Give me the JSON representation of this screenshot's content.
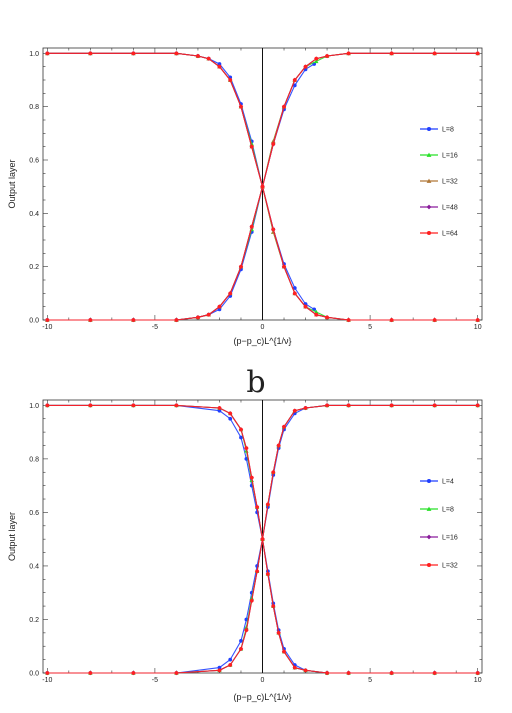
{
  "chart_data": [
    {
      "type": "line",
      "panel_label": "",
      "xlabel": "(p−p_c)L^{1/ν}",
      "ylabel": "Output layer",
      "xlim": [
        -10.2,
        10.2
      ],
      "ylim": [
        0,
        1.02
      ],
      "xticks": [
        -10,
        -5,
        0,
        5,
        10
      ],
      "yticks": [
        0.0,
        0.2,
        0.4,
        0.6,
        0.8,
        1.0
      ],
      "xtick_labels": [
        "-10",
        "-5",
        "0",
        "5",
        "10"
      ],
      "ytick_labels": [
        "0.0",
        "0.2",
        "0.4",
        "0.6",
        "0.8",
        "1.0"
      ],
      "vertical_line_x": 0,
      "legend_position": "right",
      "x": [
        -10,
        -8,
        -6,
        -4,
        -3,
        -2.5,
        -2,
        -1.5,
        -1,
        -0.5,
        0,
        0.5,
        1,
        1.5,
        2,
        2.5,
        3,
        4,
        6,
        8,
        10
      ],
      "series": [
        {
          "name": "L=8",
          "color": "#1f3fff",
          "marker": "circle",
          "x": [
            -10,
            -8,
            -6,
            -4,
            -3,
            -2.5,
            -2,
            -1.5,
            -1,
            -0.5,
            0,
            0.5,
            1,
            1.5,
            2,
            2.4
          ],
          "ascending": [
            0.0,
            0.0,
            0.0,
            0.0,
            0.01,
            0.02,
            0.04,
            0.09,
            0.19,
            0.33,
            0.5,
            0.66,
            0.79,
            0.88,
            0.94,
            0.96
          ],
          "descending": [
            1.0,
            1.0,
            1.0,
            1.0,
            0.99,
            0.98,
            0.96,
            0.91,
            0.81,
            0.67,
            0.5,
            0.34,
            0.21,
            0.12,
            0.06,
            0.04
          ]
        },
        {
          "name": "L=16",
          "color": "#28e028",
          "marker": "triangle",
          "ascending": [
            0.0,
            0.0,
            0.0,
            0.0,
            0.01,
            0.02,
            0.05,
            0.1,
            0.2,
            0.34,
            0.5,
            0.67,
            0.8,
            0.9,
            0.95,
            0.97,
            0.99,
            1.0,
            1.0,
            1.0,
            1.0
          ],
          "descending": [
            1.0,
            1.0,
            1.0,
            1.0,
            0.99,
            0.98,
            0.95,
            0.9,
            0.8,
            0.66,
            0.5,
            0.33,
            0.2,
            0.1,
            0.05,
            0.03,
            0.01,
            0.0,
            0.0,
            0.0,
            0.0
          ]
        },
        {
          "name": "L=32",
          "color": "#b07838",
          "marker": "triangle",
          "ascending": [
            0.0,
            0.0,
            0.0,
            0.0,
            0.01,
            0.02,
            0.05,
            0.1,
            0.2,
            0.35,
            0.5,
            0.67,
            0.8,
            0.9,
            0.95,
            0.98,
            0.99,
            1.0,
            1.0,
            1.0,
            1.0
          ],
          "descending": [
            1.0,
            1.0,
            1.0,
            1.0,
            0.99,
            0.98,
            0.95,
            0.9,
            0.8,
            0.65,
            0.5,
            0.33,
            0.2,
            0.1,
            0.05,
            0.02,
            0.01,
            0.0,
            0.0,
            0.0,
            0.0
          ]
        },
        {
          "name": "L=48",
          "color": "#8a1c9c",
          "marker": "diamond",
          "ascending": [
            0.0,
            0.0,
            0.0,
            0.0,
            0.01,
            0.02,
            0.05,
            0.1,
            0.2,
            0.35,
            0.5,
            0.66,
            0.8,
            0.9,
            0.95,
            0.98,
            0.99,
            1.0,
            1.0,
            1.0,
            1.0
          ],
          "descending": [
            1.0,
            1.0,
            1.0,
            1.0,
            0.99,
            0.98,
            0.95,
            0.9,
            0.8,
            0.65,
            0.5,
            0.34,
            0.2,
            0.1,
            0.05,
            0.02,
            0.01,
            0.0,
            0.0,
            0.0,
            0.0
          ]
        },
        {
          "name": "L=64",
          "color": "#ff2020",
          "marker": "circle",
          "ascending": [
            0.0,
            0.0,
            0.0,
            0.0,
            0.01,
            0.02,
            0.05,
            0.1,
            0.2,
            0.35,
            0.5,
            0.66,
            0.8,
            0.9,
            0.95,
            0.98,
            0.99,
            1.0,
            1.0,
            1.0,
            1.0
          ],
          "descending": [
            1.0,
            1.0,
            1.0,
            1.0,
            0.99,
            0.98,
            0.95,
            0.9,
            0.8,
            0.65,
            0.5,
            0.34,
            0.2,
            0.1,
            0.05,
            0.02,
            0.01,
            0.0,
            0.0,
            0.0,
            0.0
          ]
        }
      ]
    },
    {
      "type": "line",
      "panel_label": "b",
      "xlabel": "(p−p_c)L^{1/ν}",
      "ylabel": "Output layer",
      "xlim": [
        -10.2,
        10.2
      ],
      "ylim": [
        0,
        1.02
      ],
      "xticks": [
        -10,
        -5,
        0,
        5,
        10
      ],
      "yticks": [
        0.0,
        0.2,
        0.4,
        0.6,
        0.8,
        1.0
      ],
      "xtick_labels": [
        "-10",
        "-5",
        "0",
        "5",
        "10"
      ],
      "ytick_labels": [
        "0.0",
        "0.2",
        "0.4",
        "0.6",
        "0.8",
        "1.0"
      ],
      "vertical_line_x": 0,
      "legend_position": "right",
      "x": [
        -10,
        -8,
        -6,
        -4,
        -2,
        -1.5,
        -1,
        -0.75,
        -0.5,
        -0.25,
        0,
        0.25,
        0.5,
        0.75,
        1,
        1.5,
        2,
        3,
        4,
        6,
        8,
        10
      ],
      "series": [
        {
          "name": "L=4",
          "color": "#1f3fff",
          "marker": "circle",
          "ascending": [
            0.0,
            0.0,
            0.0,
            0.0,
            0.02,
            0.05,
            0.12,
            0.2,
            0.3,
            0.4,
            0.5,
            0.62,
            0.74,
            0.84,
            0.91,
            0.97,
            0.99,
            1.0,
            1.0,
            1.0,
            1.0,
            1.0
          ],
          "descending": [
            1.0,
            1.0,
            1.0,
            1.0,
            0.98,
            0.95,
            0.88,
            0.8,
            0.7,
            0.6,
            0.5,
            0.38,
            0.26,
            0.16,
            0.09,
            0.03,
            0.01,
            0.0,
            0.0,
            0.0,
            0.0,
            0.0
          ]
        },
        {
          "name": "L=8",
          "color": "#28e028",
          "marker": "triangle",
          "ascending": [
            0.0,
            0.0,
            0.0,
            0.0,
            0.01,
            0.03,
            0.09,
            0.17,
            0.28,
            0.38,
            0.5,
            0.63,
            0.75,
            0.85,
            0.92,
            0.98,
            0.99,
            1.0,
            1.0,
            1.0,
            1.0,
            1.0
          ],
          "descending": [
            1.0,
            1.0,
            1.0,
            1.0,
            0.99,
            0.97,
            0.91,
            0.83,
            0.72,
            0.62,
            0.5,
            0.37,
            0.25,
            0.15,
            0.08,
            0.02,
            0.01,
            0.0,
            0.0,
            0.0,
            0.0,
            0.0
          ]
        },
        {
          "name": "L=16",
          "color": "#8a1c9c",
          "marker": "diamond",
          "ascending": [
            0.0,
            0.0,
            0.0,
            0.0,
            0.01,
            0.03,
            0.09,
            0.16,
            0.27,
            0.38,
            0.5,
            0.63,
            0.75,
            0.85,
            0.92,
            0.98,
            0.99,
            1.0,
            1.0,
            1.0,
            1.0,
            1.0
          ],
          "descending": [
            1.0,
            1.0,
            1.0,
            1.0,
            0.99,
            0.97,
            0.91,
            0.84,
            0.73,
            0.62,
            0.5,
            0.37,
            0.25,
            0.15,
            0.08,
            0.02,
            0.01,
            0.0,
            0.0,
            0.0,
            0.0,
            0.0
          ]
        },
        {
          "name": "L=32",
          "color": "#ff2020",
          "marker": "circle",
          "ascending": [
            0.0,
            0.0,
            0.0,
            0.0,
            0.01,
            0.03,
            0.09,
            0.16,
            0.27,
            0.38,
            0.5,
            0.63,
            0.75,
            0.85,
            0.92,
            0.98,
            0.99,
            1.0,
            1.0,
            1.0,
            1.0,
            1.0
          ],
          "descending": [
            1.0,
            1.0,
            1.0,
            1.0,
            0.99,
            0.97,
            0.91,
            0.84,
            0.73,
            0.62,
            0.5,
            0.37,
            0.25,
            0.15,
            0.08,
            0.02,
            0.01,
            0.0,
            0.0,
            0.0,
            0.0,
            0.0
          ]
        }
      ]
    }
  ]
}
